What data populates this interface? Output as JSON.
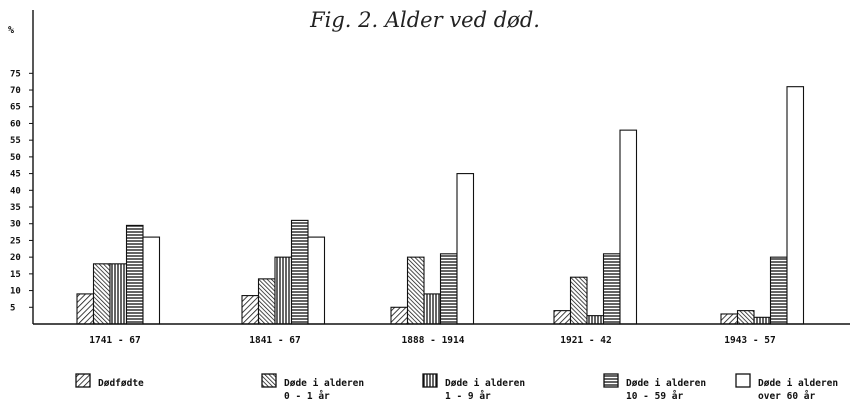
{
  "chart_data": {
    "type": "bar",
    "title": "Fig. 2. Alder ved død.",
    "ylabel": "%",
    "ylim": [
      0,
      75
    ],
    "yticks": [
      5,
      10,
      15,
      20,
      25,
      30,
      35,
      40,
      45,
      50,
      55,
      60,
      65,
      70,
      75
    ],
    "categories": [
      "1741 - 67",
      "1841 - 67",
      "1888 - 1914",
      "1921 - 42",
      "1943 - 57"
    ],
    "series": [
      {
        "name": "Dødfødte",
        "name_lines": [
          "Dødfødte"
        ],
        "pattern": "hatch-ne",
        "values": [
          9,
          8.5,
          5,
          4,
          3
        ]
      },
      {
        "name": "Døde i alderen 0 - 1 år",
        "name_lines": [
          "Døde i alderen",
          "0 - 1 år"
        ],
        "pattern": "hatch-nw",
        "values": [
          18,
          13.5,
          20,
          14,
          4
        ]
      },
      {
        "name": "Døde i alderen 1 - 9 år",
        "name_lines": [
          "Døde i alderen",
          "1 - 9 år"
        ],
        "pattern": "vertical",
        "values": [
          18,
          20,
          9,
          2.5,
          2
        ]
      },
      {
        "name": "Døde i alderen 10 - 59 år",
        "name_lines": [
          "Døde i alderen",
          "10 - 59 år"
        ],
        "pattern": "horizontal",
        "values": [
          29.5,
          31,
          21,
          21,
          20
        ]
      },
      {
        "name": "Døde i alderen over 60 år",
        "name_lines": [
          "Døde i alderen",
          "over 60 år"
        ],
        "pattern": "blank",
        "values": [
          26,
          26,
          45,
          58,
          71
        ]
      }
    ],
    "grid": false,
    "legend_position": "bottom"
  }
}
